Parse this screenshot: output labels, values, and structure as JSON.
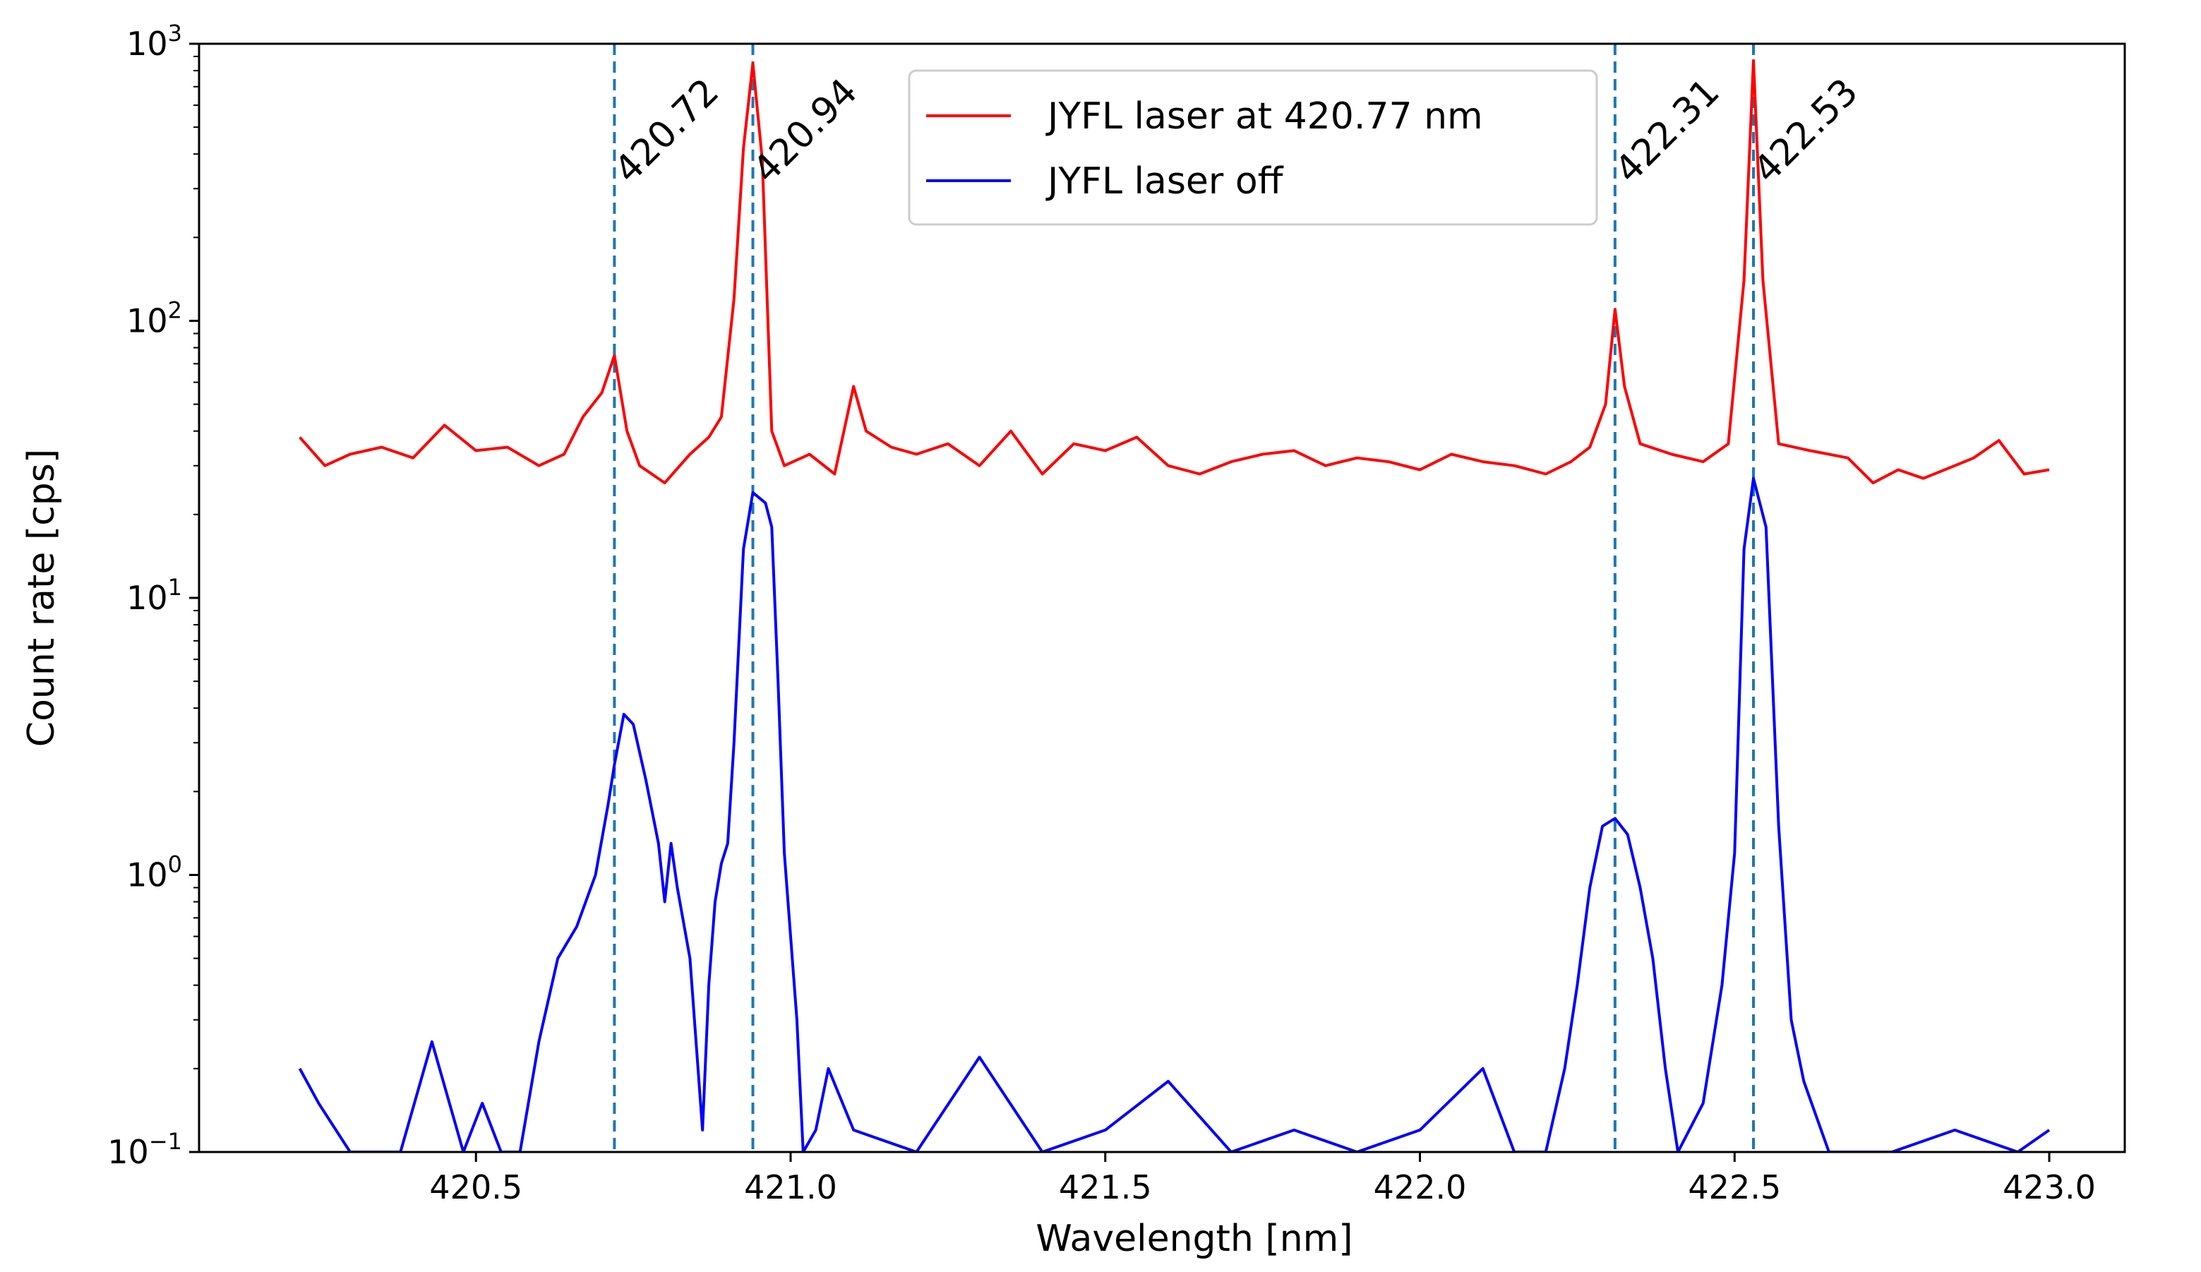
{
  "chart_data": {
    "type": "line",
    "title": "",
    "xlabel": "Wavelength [nm]",
    "ylabel": "Count rate [cps]",
    "yscale": "log",
    "xlim": [
      420.06,
      423.12
    ],
    "ylim": [
      0.1,
      1000
    ],
    "xticks": [
      {
        "value": 420.5,
        "label": "420.5"
      },
      {
        "value": 421.0,
        "label": "421.0"
      },
      {
        "value": 421.5,
        "label": "421.5"
      },
      {
        "value": 422.0,
        "label": "422.0"
      },
      {
        "value": 422.5,
        "label": "422.5"
      },
      {
        "value": 423.0,
        "label": "423.0"
      }
    ],
    "yticks": [
      {
        "value": 0.1,
        "base": "10",
        "exp": "−1"
      },
      {
        "value": 1,
        "base": "10",
        "exp": "0"
      },
      {
        "value": 10,
        "base": "10",
        "exp": "1"
      },
      {
        "value": 100,
        "base": "10",
        "exp": "2"
      },
      {
        "value": 1000,
        "base": "10",
        "exp": "3"
      }
    ],
    "reference_lines": [
      {
        "x": 420.72,
        "label": "420.72",
        "color": "#1f77b4"
      },
      {
        "x": 420.94,
        "label": "420.94",
        "color": "#1f77b4"
      },
      {
        "x": 422.31,
        "label": "422.31",
        "color": "#1f77b4"
      },
      {
        "x": 422.53,
        "label": "422.53",
        "color": "#1f77b4"
      }
    ],
    "legend_position": "top-center",
    "series": [
      {
        "name": "JYFL laser at 420.77 nm",
        "color": "#ff0000",
        "x": [
          420.22,
          420.26,
          420.3,
          420.35,
          420.4,
          420.45,
          420.5,
          420.55,
          420.6,
          420.64,
          420.67,
          420.7,
          420.72,
          420.74,
          420.76,
          420.8,
          420.84,
          420.87,
          420.89,
          420.91,
          420.925,
          420.94,
          420.955,
          420.97,
          420.99,
          421.03,
          421.07,
          421.1,
          421.12,
          421.16,
          421.2,
          421.25,
          421.3,
          421.35,
          421.4,
          421.45,
          421.5,
          421.55,
          421.6,
          421.65,
          421.7,
          421.75,
          421.8,
          421.85,
          421.9,
          421.95,
          422.0,
          422.05,
          422.1,
          422.15,
          422.2,
          422.24,
          422.27,
          422.295,
          422.31,
          422.325,
          422.35,
          422.4,
          422.45,
          422.49,
          422.515,
          422.53,
          422.545,
          422.57,
          422.62,
          422.68,
          422.72,
          422.76,
          422.8,
          422.85,
          422.88,
          422.92,
          422.96,
          423.0
        ],
        "y": [
          38,
          30,
          33,
          35,
          32,
          42,
          34,
          35,
          30,
          33,
          45,
          55,
          75,
          40,
          30,
          26,
          33,
          38,
          45,
          120,
          420,
          850,
          380,
          40,
          30,
          33,
          28,
          58,
          40,
          35,
          33,
          36,
          30,
          40,
          28,
          36,
          34,
          38,
          30,
          28,
          31,
          33,
          34,
          30,
          32,
          31,
          29,
          33,
          31,
          30,
          28,
          31,
          35,
          50,
          110,
          58,
          36,
          33,
          31,
          36,
          140,
          870,
          140,
          36,
          34,
          32,
          26,
          29,
          27,
          30,
          32,
          37,
          28,
          29
        ]
      },
      {
        "name": "JYFL laser off",
        "color": "#0000ff",
        "x": [
          420.22,
          420.25,
          420.3,
          420.38,
          420.43,
          420.48,
          420.51,
          420.54,
          420.57,
          420.6,
          420.63,
          420.66,
          420.69,
          420.71,
          420.72,
          420.735,
          420.75,
          420.77,
          420.79,
          420.8,
          420.81,
          420.82,
          420.84,
          420.86,
          420.87,
          420.88,
          420.89,
          420.9,
          420.91,
          420.925,
          420.94,
          420.96,
          420.97,
          420.98,
          420.99,
          421.0,
          421.01,
          421.02,
          421.04,
          421.06,
          421.1,
          421.2,
          421.3,
          421.4,
          421.5,
          421.6,
          421.7,
          421.8,
          421.9,
          422.0,
          422.1,
          422.15,
          422.2,
          422.23,
          422.25,
          422.27,
          422.29,
          422.31,
          422.33,
          422.35,
          422.37,
          422.39,
          422.41,
          422.45,
          422.48,
          422.5,
          422.515,
          422.53,
          422.55,
          422.57,
          422.59,
          422.61,
          422.65,
          422.75,
          422.85,
          422.95,
          423.0
        ],
        "y": [
          0.2,
          0.15,
          0.1,
          0.1,
          0.25,
          0.1,
          0.15,
          0.1,
          0.1,
          0.25,
          0.5,
          0.65,
          1.0,
          1.8,
          2.5,
          3.8,
          3.5,
          2.2,
          1.3,
          0.8,
          1.3,
          0.9,
          0.5,
          0.12,
          0.4,
          0.8,
          1.1,
          1.3,
          3.0,
          15,
          24,
          22,
          18,
          5.0,
          1.2,
          0.6,
          0.3,
          0.1,
          0.12,
          0.2,
          0.12,
          0.1,
          0.22,
          0.1,
          0.12,
          0.18,
          0.1,
          0.12,
          0.1,
          0.12,
          0.2,
          0.1,
          0.1,
          0.2,
          0.4,
          0.9,
          1.5,
          1.6,
          1.4,
          0.9,
          0.5,
          0.2,
          0.1,
          0.15,
          0.4,
          1.2,
          15,
          27,
          18,
          1.5,
          0.3,
          0.18,
          0.1,
          0.1,
          0.12,
          0.1,
          0.12
        ]
      }
    ]
  }
}
